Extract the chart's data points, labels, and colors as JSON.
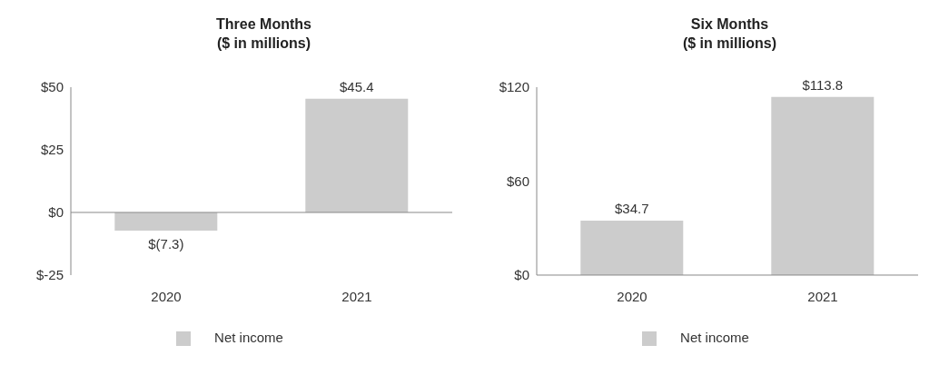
{
  "chart_data": [
    {
      "type": "bar",
      "title": "Three Months",
      "subtitle": "($ in millions)",
      "categories": [
        "2020",
        "2021"
      ],
      "series": [
        {
          "name": "Net income",
          "color": "#cccccc",
          "values": [
            -7.3,
            45.4
          ],
          "value_labels": [
            "$(7.3)",
            "$45.4"
          ]
        }
      ],
      "ylim": [
        -25,
        50
      ],
      "yticks": [
        {
          "value": -25,
          "label": "$-25"
        },
        {
          "value": 0,
          "label": "$0"
        },
        {
          "value": 25,
          "label": "$25"
        },
        {
          "value": 50,
          "label": "$50"
        }
      ],
      "legend": "bottom"
    },
    {
      "type": "bar",
      "title": "Six Months",
      "subtitle": "($ in millions)",
      "categories": [
        "2020",
        "2021"
      ],
      "series": [
        {
          "name": "Net income",
          "color": "#cccccc",
          "values": [
            34.7,
            113.8
          ],
          "value_labels": [
            "$34.7",
            "$113.8"
          ]
        }
      ],
      "ylim": [
        0,
        120
      ],
      "yticks": [
        {
          "value": 0,
          "label": "$0"
        },
        {
          "value": 60,
          "label": "$60"
        },
        {
          "value": 120,
          "label": "$120"
        }
      ],
      "legend": "bottom"
    }
  ]
}
